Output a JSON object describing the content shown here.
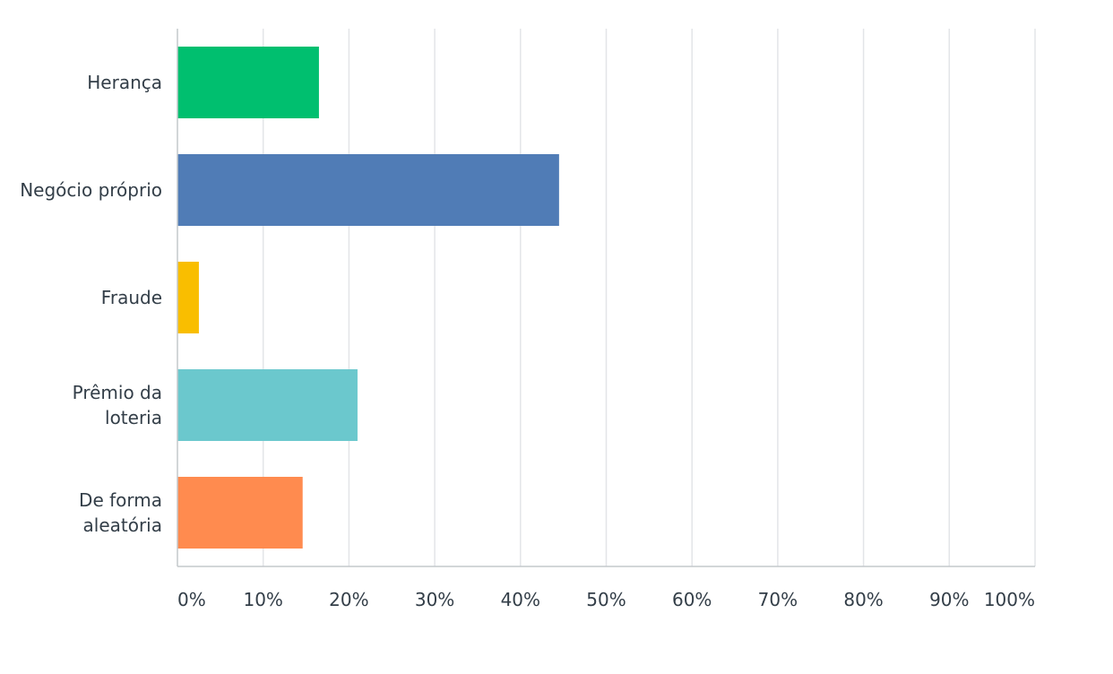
{
  "chart_data": {
    "type": "bar",
    "orientation": "horizontal",
    "categories": [
      [
        "Herança"
      ],
      [
        "Negócio próprio"
      ],
      [
        "Fraude"
      ],
      [
        "Prêmio da",
        "loteria"
      ],
      [
        "De forma",
        "aleatória"
      ]
    ],
    "values": [
      16.5,
      44.5,
      2.5,
      21.0,
      14.6
    ],
    "colors": [
      "#00bf6f",
      "#507cb6",
      "#f9be00",
      "#6bc8cd",
      "#ff8b4f"
    ],
    "xlim": [
      0,
      100
    ],
    "xticks": [
      "0%",
      "10%",
      "20%",
      "30%",
      "40%",
      "50%",
      "60%",
      "70%",
      "80%",
      "90%",
      "100%"
    ],
    "grid": true,
    "legend": "none"
  }
}
